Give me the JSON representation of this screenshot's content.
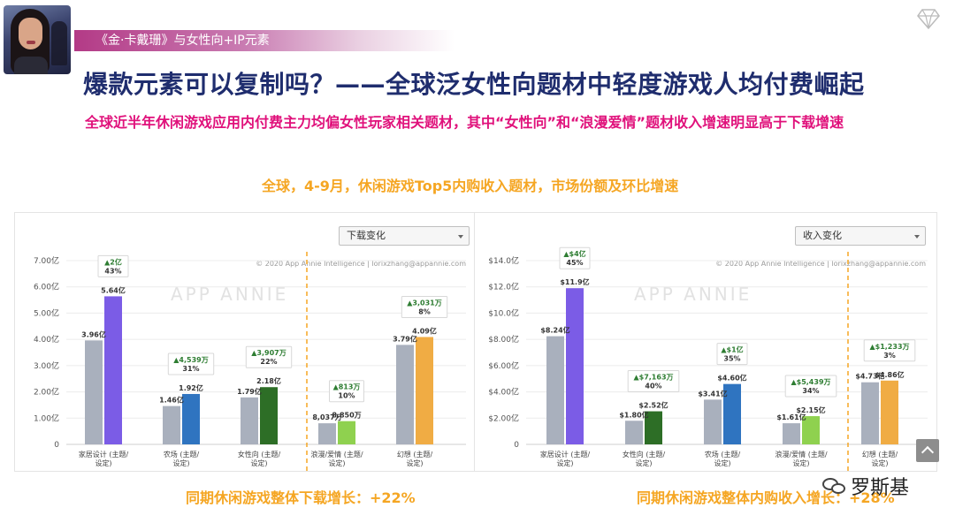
{
  "header": {
    "subtitle": "《金·卡戴珊》与女性向+IP元素",
    "title": "爆款元素可以复制吗？——全球泛女性向题材中轻度游戏人均付费崛起",
    "headline": "全球近半年休闲游戏应用内付费主力均偏女性玩家相关题材，其中“女性向”和“浪漫爱情”题材收入增速明显高于下载增速"
  },
  "chart_heading": "全球，4-9月，休闲游戏Top5内购收入题材，市场份额及环比增速",
  "watermark": "APP ANNIE",
  "copyright": "© 2020 App Annie Intelligence | lorixzhang@appannie.com",
  "colors": {
    "prev": "#a9b0bd",
    "dashed": "#f5a623",
    "title": "#1f2d6e",
    "headline": "#e0117b",
    "heading": "#f5a623"
  },
  "chart_data": [
    {
      "type": "bar",
      "dropdown": "下载变化",
      "ylim": [
        0,
        7
      ],
      "ytick_labels": [
        "0",
        "1.00亿",
        "2.00亿",
        "3.00亿",
        "4.00亿",
        "5.00亿",
        "6.00亿",
        "7.00亿"
      ],
      "categories": [
        "家居设计 (主题/设定)",
        "农场 (主题/设定)",
        "女性向 (主题/设定)",
        "浪漫/爱情 (主题/设定)",
        "幻想 (主题/设定)"
      ],
      "series": [
        {
          "values": [
            3.96,
            1.46,
            1.79,
            0.8037,
            3.79
          ],
          "labels": [
            "3.96亿",
            "1.46亿",
            "1.79亿",
            "8,037万",
            "3.79亿"
          ]
        },
        {
          "values": [
            5.64,
            1.92,
            2.18,
            0.885,
            4.09
          ],
          "labels": [
            "5.64亿",
            "1.92亿",
            "2.18亿",
            "8,850万",
            "4.09亿"
          ],
          "colors": [
            "#7b5ce6",
            "#2f74c0",
            "#2d6e26",
            "#8fd14f",
            "#f0ac44"
          ]
        }
      ],
      "change": [
        {
          "amount": "▲2亿",
          "pct": "43%"
        },
        {
          "amount": "▲4,539万",
          "pct": "31%"
        },
        {
          "amount": "▲3,907万",
          "pct": "22%"
        },
        {
          "amount": "▲813万",
          "pct": "10%"
        },
        {
          "amount": "▲3,031万",
          "pct": "8%"
        }
      ],
      "note": "同期休闲游戏整体下载增长：+22%"
    },
    {
      "type": "bar",
      "dropdown": "收入变化",
      "ylim": [
        0,
        14
      ],
      "ytick_labels": [
        "0",
        "$2.00亿",
        "$4.00亿",
        "$6.00亿",
        "$8.00亿",
        "$10.0亿",
        "$12.0亿",
        "$14.0亿"
      ],
      "categories": [
        "家居设计 (主题/设定)",
        "女性向 (主题/设定)",
        "农场 (主题/设定)",
        "浪漫/爱情 (主题/设定)",
        "幻想 (主题/设定)"
      ],
      "series": [
        {
          "values": [
            8.24,
            1.8,
            3.41,
            1.61,
            4.73
          ],
          "labels": [
            "$8.24亿",
            "$1.80亿",
            "$3.41亿",
            "$1.61亿",
            "$4.73亿"
          ]
        },
        {
          "values": [
            11.9,
            2.52,
            4.6,
            2.15,
            4.86
          ],
          "labels": [
            "$11.9亿",
            "$2.52亿",
            "$4.60亿",
            "$2.15亿",
            "$4.86亿"
          ],
          "colors": [
            "#7b5ce6",
            "#2d6e26",
            "#2f74c0",
            "#8fd14f",
            "#f0ac44"
          ]
        }
      ],
      "change": [
        {
          "amount": "▲$4亿",
          "pct": "45%"
        },
        {
          "amount": "▲$7,163万",
          "pct": "40%"
        },
        {
          "amount": "▲$1亿",
          "pct": "35%"
        },
        {
          "amount": "▲$5,439万",
          "pct": "34%"
        },
        {
          "amount": "▲$1,233万",
          "pct": "3%"
        }
      ],
      "note": "同期休闲游戏整体内购收入增长：+28%"
    }
  ],
  "brand": {
    "name": "罗斯基",
    "icon": "wechat-icon"
  }
}
